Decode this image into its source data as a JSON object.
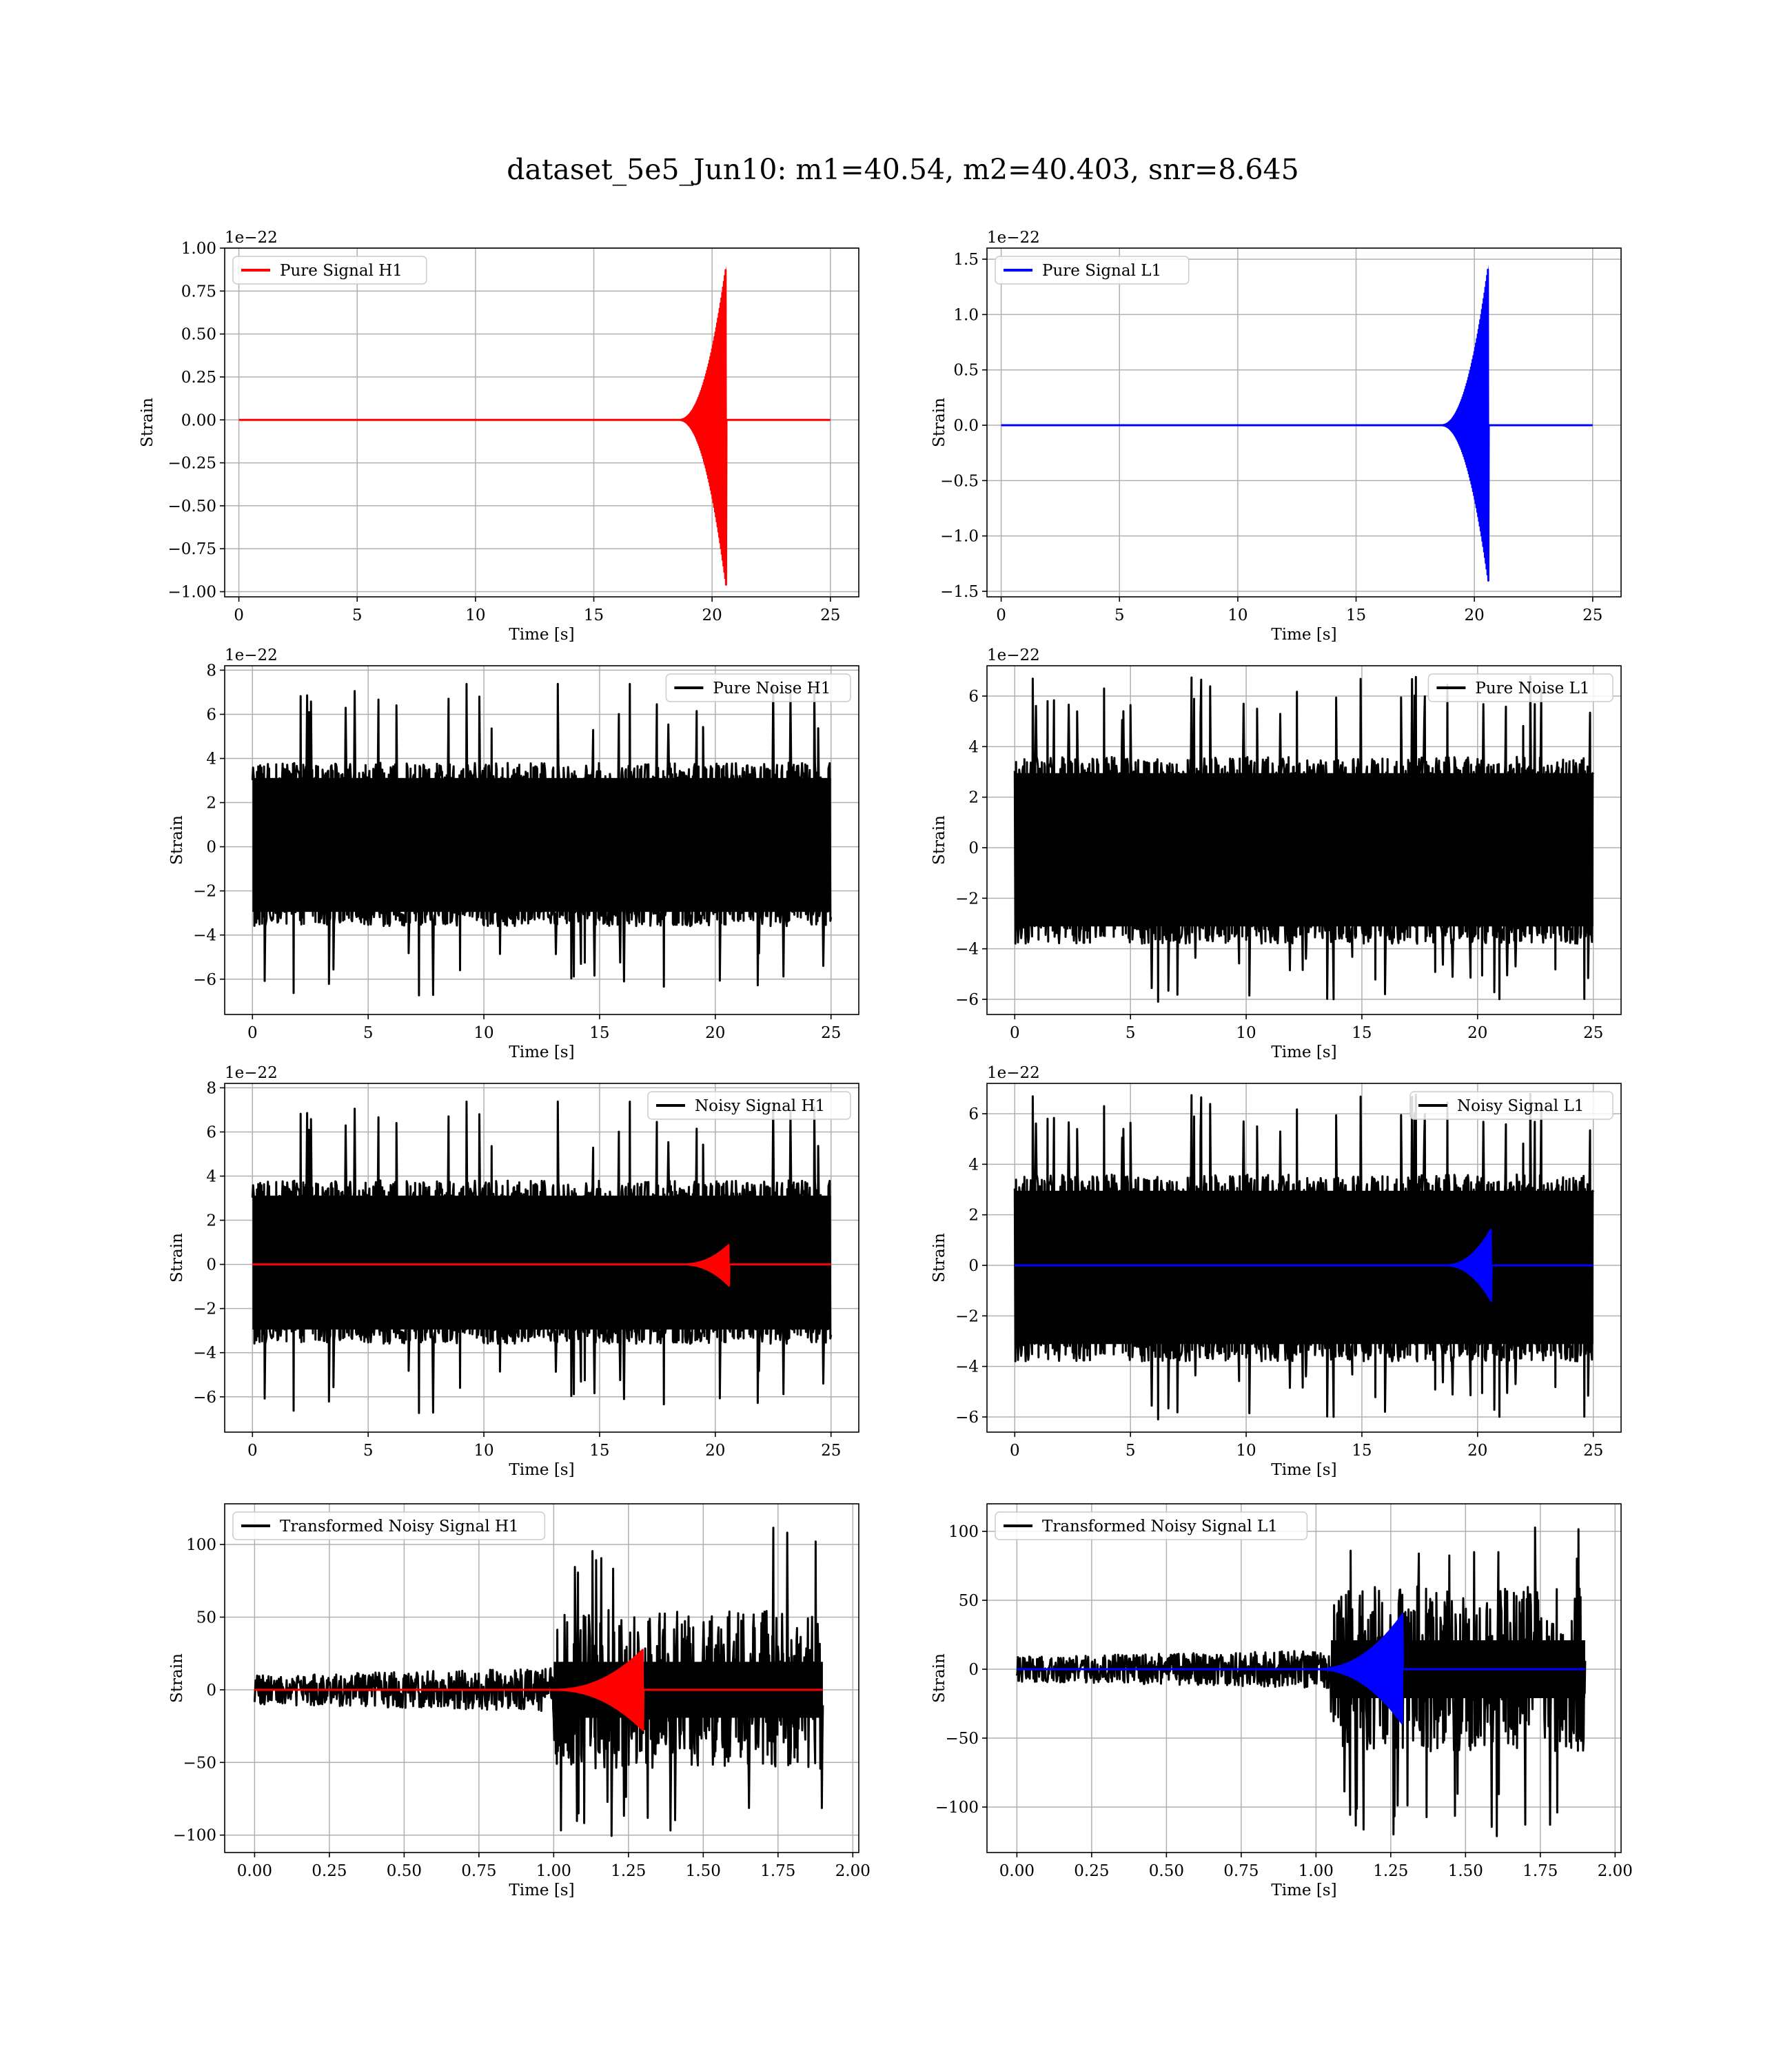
{
  "figure": {
    "title": "dataset_5e5_Jun10: m1=40.54, m2=40.403, snr=8.645"
  },
  "colors": {
    "h1_signal": "#ff0000",
    "l1_signal": "#0000ff",
    "noise": "#000000",
    "grid": "#b0b0b0"
  },
  "chart_data": [
    {
      "id": "pure-signal-h1",
      "type": "line",
      "kind": "chirp",
      "xlabel": "Time [s]",
      "ylabel": "Strain",
      "scale_note": "1e−22",
      "xlim": [
        -0.6,
        26.2
      ],
      "ylim": [
        -1.03,
        1.0
      ],
      "xticks": [
        0,
        5,
        10,
        15,
        20,
        25
      ],
      "xtick_labels": [
        "0",
        "5",
        "10",
        "15",
        "20",
        "25"
      ],
      "yticks": [
        -1.0,
        -0.75,
        -0.5,
        -0.25,
        0.0,
        0.25,
        0.5,
        0.75,
        1.0
      ],
      "ytick_labels": [
        "−1.00",
        "−0.75",
        "−0.50",
        "−0.25",
        "0.00",
        "0.25",
        "0.50",
        "0.75",
        "1.00"
      ],
      "grid": true,
      "legend_position": "upper left",
      "series": [
        {
          "name": "Pure Signal H1",
          "color": "#ff0000",
          "x_range": [
            0,
            25
          ],
          "peak": 0.9,
          "trough": -0.97,
          "merger_time": 20.6,
          "ring_start": 18.6
        }
      ]
    },
    {
      "id": "pure-signal-l1",
      "type": "line",
      "kind": "chirp",
      "xlabel": "Time [s]",
      "ylabel": "Strain",
      "scale_note": "1e−22",
      "xlim": [
        -0.6,
        26.2
      ],
      "ylim": [
        -1.55,
        1.6
      ],
      "xticks": [
        0,
        5,
        10,
        15,
        20,
        25
      ],
      "xtick_labels": [
        "0",
        "5",
        "10",
        "15",
        "20",
        "25"
      ],
      "yticks": [
        -1.5,
        -1.0,
        -0.5,
        0.0,
        0.5,
        1.0,
        1.5
      ],
      "ytick_labels": [
        "−1.5",
        "−1.0",
        "−0.5",
        "0.0",
        "0.5",
        "1.0",
        "1.5"
      ],
      "grid": true,
      "legend_position": "upper left",
      "series": [
        {
          "name": "Pure Signal L1",
          "color": "#0000ff",
          "x_range": [
            0,
            25
          ],
          "peak": 1.45,
          "trough": -1.42,
          "merger_time": 20.6,
          "ring_start": 18.6
        }
      ]
    },
    {
      "id": "pure-noise-h1",
      "type": "line",
      "kind": "noise",
      "xlabel": "Time [s]",
      "ylabel": "Strain",
      "scale_note": "1e−22",
      "xlim": [
        -1.2,
        26.2
      ],
      "ylim": [
        -7.6,
        8.2
      ],
      "xticks": [
        0,
        5,
        10,
        15,
        20,
        25
      ],
      "xtick_labels": [
        "0",
        "5",
        "10",
        "15",
        "20",
        "25"
      ],
      "yticks": [
        -6,
        -4,
        -2,
        0,
        2,
        4,
        6,
        8
      ],
      "ytick_labels": [
        "−6",
        "−4",
        "−2",
        "0",
        "2",
        "4",
        "6",
        "8"
      ],
      "grid": true,
      "legend_position": "upper right",
      "series": [
        {
          "name": "Pure Noise H1",
          "color": "#000000",
          "x_range": [
            0,
            25
          ],
          "band": [
            -3.6,
            3.8
          ],
          "max": 7.4,
          "min": -6.8,
          "seed": 11
        }
      ]
    },
    {
      "id": "pure-noise-l1",
      "type": "line",
      "kind": "noise",
      "xlabel": "Time [s]",
      "ylabel": "Strain",
      "scale_note": "1e−22",
      "xlim": [
        -1.2,
        26.2
      ],
      "ylim": [
        -6.6,
        7.2
      ],
      "xticks": [
        0,
        5,
        10,
        15,
        20,
        25
      ],
      "xtick_labels": [
        "0",
        "5",
        "10",
        "15",
        "20",
        "25"
      ],
      "yticks": [
        -6,
        -4,
        -2,
        0,
        2,
        4,
        6
      ],
      "ytick_labels": [
        "−6",
        "−4",
        "−2",
        "0",
        "2",
        "4",
        "6"
      ],
      "grid": true,
      "legend_position": "upper right",
      "series": [
        {
          "name": "Pure Noise L1",
          "color": "#000000",
          "x_range": [
            0,
            25
          ],
          "band": [
            -3.8,
            3.6
          ],
          "max": 6.8,
          "min": -6.1,
          "seed": 23
        }
      ]
    },
    {
      "id": "noisy-signal-h1",
      "type": "line",
      "kind": "noise+chirp",
      "xlabel": "Time [s]",
      "ylabel": "Strain",
      "scale_note": "1e−22",
      "xlim": [
        -1.2,
        26.2
      ],
      "ylim": [
        -7.6,
        8.2
      ],
      "xticks": [
        0,
        5,
        10,
        15,
        20,
        25
      ],
      "xtick_labels": [
        "0",
        "5",
        "10",
        "15",
        "20",
        "25"
      ],
      "yticks": [
        -6,
        -4,
        -2,
        0,
        2,
        4,
        6,
        8
      ],
      "ytick_labels": [
        "−6",
        "−4",
        "−2",
        "0",
        "2",
        "4",
        "6",
        "8"
      ],
      "grid": true,
      "legend_position": "upper right",
      "series": [
        {
          "name": "Noisy Signal H1",
          "color": "#000000",
          "x_range": [
            0,
            25
          ],
          "band": [
            -3.6,
            3.8
          ],
          "max": 7.4,
          "min": -6.8,
          "seed": 11
        },
        {
          "name": "",
          "color": "#ff0000",
          "x_range": [
            0,
            25
          ],
          "peak": 0.9,
          "trough": -0.97,
          "merger_time": 20.6,
          "ring_start": 18.6
        }
      ]
    },
    {
      "id": "noisy-signal-l1",
      "type": "line",
      "kind": "noise+chirp",
      "xlabel": "Time [s]",
      "ylabel": "Strain",
      "scale_note": "1e−22",
      "xlim": [
        -1.2,
        26.2
      ],
      "ylim": [
        -6.6,
        7.2
      ],
      "xticks": [
        0,
        5,
        10,
        15,
        20,
        25
      ],
      "xtick_labels": [
        "0",
        "5",
        "10",
        "15",
        "20",
        "25"
      ],
      "yticks": [
        -6,
        -4,
        -2,
        0,
        2,
        4,
        6
      ],
      "ytick_labels": [
        "−6",
        "−4",
        "−2",
        "0",
        "2",
        "4",
        "6"
      ],
      "grid": true,
      "legend_position": "upper right",
      "series": [
        {
          "name": "Noisy Signal L1",
          "color": "#000000",
          "x_range": [
            0,
            25
          ],
          "band": [
            -3.8,
            3.6
          ],
          "max": 6.8,
          "min": -6.1,
          "seed": 23
        },
        {
          "name": "",
          "color": "#0000ff",
          "x_range": [
            0,
            25
          ],
          "peak": 1.45,
          "trough": -1.42,
          "merger_time": 20.6,
          "ring_start": 18.6
        }
      ]
    },
    {
      "id": "transformed-h1",
      "type": "line",
      "kind": "whitened",
      "xlabel": "Time [s]",
      "ylabel": "Strain",
      "scale_note": "",
      "xlim": [
        -0.1,
        2.02
      ],
      "ylim": [
        -112,
        128
      ],
      "xticks": [
        0,
        0.25,
        0.5,
        0.75,
        1.0,
        1.25,
        1.5,
        1.75,
        2.0
      ],
      "xtick_labels": [
        "0.00",
        "0.25",
        "0.50",
        "0.75",
        "1.00",
        "1.25",
        "1.50",
        "1.75",
        "2.00"
      ],
      "yticks": [
        -100,
        -50,
        0,
        50,
        100
      ],
      "ytick_labels": [
        "−100",
        "−50",
        "0",
        "50",
        "100"
      ],
      "grid": true,
      "legend_position": "upper left",
      "series": [
        {
          "name": "Transformed Noisy Signal H1",
          "color": "#000000",
          "x_range": [
            0,
            1.9
          ],
          "pre_band": 10,
          "post_band": 55,
          "rise_time": 1.0,
          "max": 115,
          "min": -105,
          "seed": 37
        },
        {
          "name": "",
          "color": "#ff0000",
          "x_range": [
            0,
            1.9
          ],
          "peak": 28,
          "trough": -28,
          "merger_time": 1.3,
          "ring_start": 1.0
        }
      ]
    },
    {
      "id": "transformed-l1",
      "type": "line",
      "kind": "whitened",
      "xlabel": "Time [s]",
      "ylabel": "Strain",
      "scale_note": "",
      "xlim": [
        -0.1,
        2.02
      ],
      "ylim": [
        -133,
        120
      ],
      "xticks": [
        0,
        0.25,
        0.5,
        0.75,
        1.0,
        1.25,
        1.5,
        1.75,
        2.0
      ],
      "xtick_labels": [
        "0.00",
        "0.25",
        "0.50",
        "0.75",
        "1.00",
        "1.25",
        "1.50",
        "1.75",
        "2.00"
      ],
      "yticks": [
        -100,
        -50,
        0,
        50,
        100
      ],
      "ytick_labels": [
        "−100",
        "−50",
        "0",
        "50",
        "100"
      ],
      "grid": true,
      "legend_position": "upper left",
      "series": [
        {
          "name": "Transformed Noisy Signal L1",
          "color": "#000000",
          "x_range": [
            0,
            1.9
          ],
          "pre_band": 9,
          "post_band": 60,
          "rise_time": 1.05,
          "max": 108,
          "min": -122,
          "seed": 53
        },
        {
          "name": "",
          "color": "#0000ff",
          "x_range": [
            0,
            1.9
          ],
          "peak": 40,
          "trough": -40,
          "merger_time": 1.29,
          "ring_start": 1.0
        }
      ]
    }
  ]
}
